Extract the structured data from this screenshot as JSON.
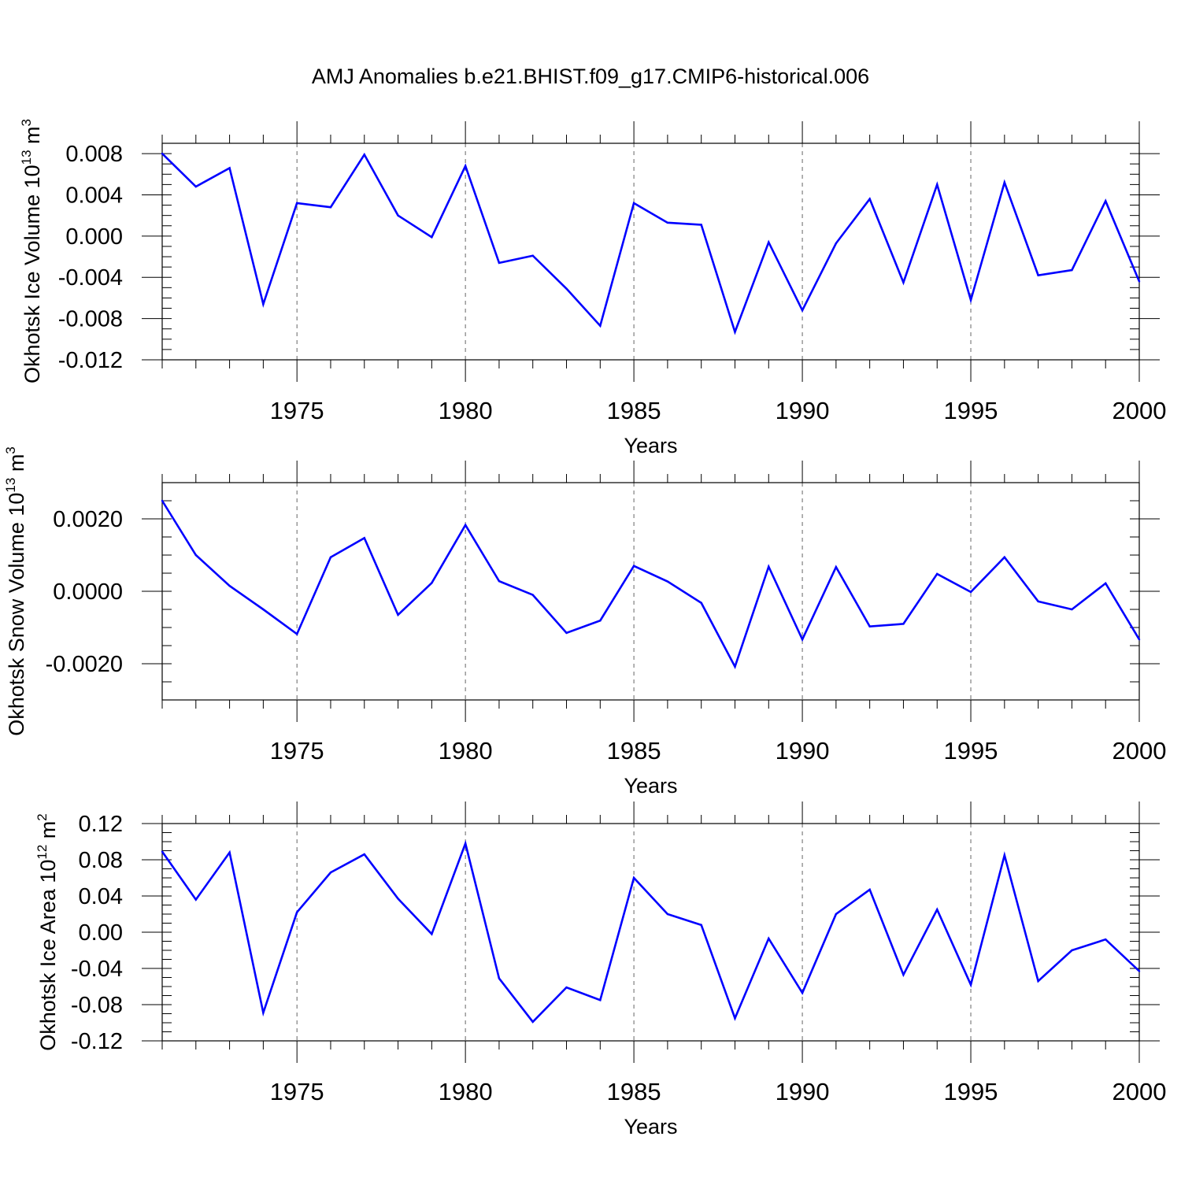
{
  "title": "AMJ Anomalies b.e21.BHIST.f09_g17.CMIP6-historical.006",
  "colors": {
    "line": "#0000ff",
    "axis": "#000000",
    "grid": "#666666",
    "background": "#ffffff"
  },
  "chart_data": [
    {
      "type": "line",
      "xlabel": "Years",
      "ylabel": {
        "text": "Okhotsk Ice Volume 10",
        "sup": "13",
        "mid": " m",
        "sup2": "3"
      },
      "xlim": [
        1971,
        2000
      ],
      "ylim": [
        -0.012,
        0.009
      ],
      "x_ticks": [
        1975,
        1980,
        1985,
        1990,
        1995,
        2000
      ],
      "x_tick_labels": [
        "1975",
        "1980",
        "1985",
        "1990",
        "1995",
        "2000"
      ],
      "y_ticks": [
        -0.012,
        -0.008,
        -0.004,
        0.0,
        0.004,
        0.008
      ],
      "y_tick_labels": [
        "-0.012",
        "-0.008",
        "-0.004",
        "0.000",
        "0.004",
        "0.008"
      ],
      "y_minor_step": 0.001,
      "grid": "x-dashed",
      "series": [
        {
          "x": [
            1971,
            1972,
            1973,
            1974,
            1975,
            1976,
            1977,
            1978,
            1979,
            1980,
            1981,
            1982,
            1983,
            1984,
            1985,
            1986,
            1987,
            1988,
            1989,
            1990,
            1991,
            1992,
            1993,
            1994,
            1995,
            1996,
            1997,
            1998,
            1999,
            2000
          ],
          "values": [
            0.008,
            0.0048,
            0.0066,
            -0.0066,
            0.0032,
            0.0028,
            0.0079,
            0.002,
            -0.0001,
            0.0068,
            -0.0026,
            -0.0019,
            -0.0051,
            -0.0087,
            0.0032,
            0.0013,
            0.0011,
            -0.0093,
            -0.0006,
            -0.0072,
            -0.0007,
            0.0036,
            -0.0045,
            0.005,
            -0.0062,
            0.0052,
            -0.0038,
            -0.0033,
            0.0034,
            -0.0044
          ]
        }
      ]
    },
    {
      "type": "line",
      "xlabel": "Years",
      "ylabel": {
        "text": "Okhotsk Snow Volume 10",
        "sup": "13",
        "mid": " m",
        "sup2": "3"
      },
      "xlim": [
        1971,
        2000
      ],
      "ylim": [
        -0.003,
        0.003
      ],
      "x_ticks": [
        1975,
        1980,
        1985,
        1990,
        1995,
        2000
      ],
      "x_tick_labels": [
        "1975",
        "1980",
        "1985",
        "1990",
        "1995",
        "2000"
      ],
      "y_ticks": [
        -0.002,
        0.0,
        0.002
      ],
      "y_tick_labels": [
        "-0.0020",
        "0.0000",
        "0.0020"
      ],
      "y_minor_step": 0.0005,
      "grid": "x-dashed",
      "series": [
        {
          "x": [
            1971,
            1972,
            1973,
            1974,
            1975,
            1976,
            1977,
            1978,
            1979,
            1980,
            1981,
            1982,
            1983,
            1984,
            1985,
            1986,
            1987,
            1988,
            1989,
            1990,
            1991,
            1992,
            1993,
            1994,
            1995,
            1996,
            1997,
            1998,
            1999,
            2000
          ],
          "values": [
            0.0025,
            0.001,
            0.00015,
            -0.0005,
            -0.00118,
            0.00094,
            0.00147,
            -0.00065,
            0.00023,
            0.00183,
            0.00028,
            -0.0001,
            -0.00115,
            -0.00081,
            0.0007,
            0.00027,
            -0.00032,
            -0.00208,
            0.00068,
            -0.00133,
            0.00067,
            -0.00097,
            -0.0009,
            0.00048,
            -2e-05,
            0.00094,
            -0.00028,
            -0.0005,
            0.00022,
            -0.00133
          ]
        }
      ]
    },
    {
      "type": "line",
      "xlabel": "Years",
      "ylabel": {
        "text": "Okhotsk Ice Area 10",
        "sup": "12",
        "mid": " m",
        "sup2": "2"
      },
      "xlim": [
        1971,
        2000
      ],
      "ylim": [
        -0.12,
        0.12
      ],
      "x_ticks": [
        1975,
        1980,
        1985,
        1990,
        1995,
        2000
      ],
      "x_tick_labels": [
        "1975",
        "1980",
        "1985",
        "1990",
        "1995",
        "2000"
      ],
      "y_ticks": [
        -0.12,
        -0.08,
        -0.04,
        0.0,
        0.04,
        0.08,
        0.12
      ],
      "y_tick_labels": [
        "-0.12",
        "-0.08",
        "-0.04",
        "0.00",
        "0.04",
        "0.08",
        "0.12"
      ],
      "y_minor_step": 0.01,
      "grid": "x-dashed",
      "series": [
        {
          "x": [
            1971,
            1972,
            1973,
            1974,
            1975,
            1976,
            1977,
            1978,
            1979,
            1980,
            1981,
            1982,
            1983,
            1984,
            1985,
            1986,
            1987,
            1988,
            1989,
            1990,
            1991,
            1992,
            1993,
            1994,
            1995,
            1996,
            1997,
            1998,
            1999,
            2000
          ],
          "values": [
            0.089,
            0.036,
            0.088,
            -0.089,
            0.022,
            0.066,
            0.086,
            0.037,
            -0.002,
            0.098,
            -0.051,
            -0.099,
            -0.061,
            -0.075,
            0.06,
            0.02,
            0.008,
            -0.095,
            -0.007,
            -0.067,
            0.02,
            0.047,
            -0.047,
            0.025,
            -0.058,
            0.085,
            -0.054,
            -0.02,
            -0.008,
            -0.043
          ]
        }
      ]
    }
  ]
}
